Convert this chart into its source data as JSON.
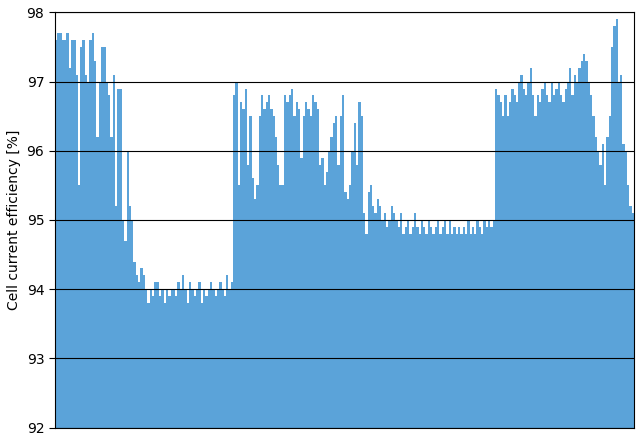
{
  "ylabel": "Cell current efficiency [%]",
  "ylim": [
    92,
    98
  ],
  "yticks": [
    92,
    93,
    94,
    95,
    96,
    97,
    98
  ],
  "bar_color": "#5ba3d9",
  "background_color": "#ffffff",
  "grid_color": "#000000",
  "values": [
    97.6,
    97.7,
    97.7,
    97.6,
    97.6,
    97.7,
    97.2,
    97.6,
    97.6,
    97.1,
    95.5,
    97.5,
    97.6,
    97.1,
    97.0,
    97.6,
    97.7,
    97.3,
    96.2,
    97.0,
    97.5,
    97.5,
    97.0,
    96.8,
    96.2,
    97.1,
    95.2,
    96.9,
    96.9,
    95.0,
    94.7,
    96.0,
    95.2,
    95.0,
    94.4,
    94.2,
    94.1,
    94.3,
    94.2,
    94.0,
    93.8,
    94.0,
    93.9,
    94.1,
    94.1,
    93.9,
    94.0,
    93.8,
    94.0,
    93.9,
    94.0,
    94.0,
    93.9,
    94.1,
    94.0,
    94.2,
    94.0,
    93.8,
    94.1,
    94.0,
    93.9,
    94.0,
    94.1,
    93.8,
    94.0,
    93.9,
    94.0,
    94.1,
    94.0,
    93.9,
    94.0,
    94.1,
    94.0,
    93.9,
    94.2,
    94.0,
    94.1,
    96.8,
    97.0,
    95.5,
    96.7,
    96.6,
    96.9,
    95.8,
    96.5,
    95.6,
    95.3,
    95.5,
    96.5,
    96.8,
    96.6,
    96.7,
    96.8,
    96.6,
    96.5,
    96.2,
    95.8,
    95.5,
    95.5,
    96.8,
    96.7,
    96.8,
    96.9,
    96.5,
    96.7,
    96.6,
    95.9,
    96.5,
    96.7,
    96.6,
    96.5,
    96.8,
    96.7,
    96.6,
    95.8,
    95.9,
    95.5,
    95.7,
    96.0,
    96.2,
    96.4,
    96.5,
    95.8,
    96.5,
    96.8,
    95.4,
    95.3,
    95.5,
    96.0,
    96.4,
    95.8,
    96.7,
    96.5,
    95.1,
    94.8,
    95.4,
    95.5,
    95.2,
    95.1,
    95.3,
    95.2,
    95.0,
    95.1,
    94.9,
    95.0,
    95.2,
    95.1,
    95.0,
    94.9,
    95.1,
    94.8,
    94.9,
    95.0,
    94.8,
    94.9,
    95.1,
    94.9,
    94.8,
    95.0,
    94.9,
    94.8,
    95.0,
    94.9,
    94.8,
    94.9,
    95.0,
    94.8,
    94.9,
    95.0,
    94.8,
    95.0,
    94.8,
    94.9,
    94.8,
    94.9,
    94.8,
    94.9,
    94.8,
    95.0,
    94.8,
    94.9,
    94.8,
    95.0,
    94.9,
    94.8,
    95.0,
    94.9,
    95.0,
    94.9,
    95.0,
    96.9,
    96.8,
    96.7,
    96.5,
    96.8,
    96.5,
    96.7,
    96.9,
    96.8,
    96.7,
    97.0,
    97.1,
    96.9,
    96.8,
    97.0,
    97.2,
    96.8,
    96.5,
    96.8,
    96.7,
    96.9,
    97.0,
    96.8,
    96.7,
    97.0,
    96.8,
    96.9,
    97.0,
    96.8,
    96.7,
    96.9,
    97.0,
    97.2,
    96.8,
    97.1,
    97.0,
    97.2,
    97.3,
    97.4,
    97.3,
    97.0,
    96.8,
    96.5,
    96.2,
    96.0,
    95.8,
    96.1,
    95.5,
    96.2,
    96.5,
    97.5,
    97.8,
    97.9,
    97.0,
    97.1,
    96.1,
    96.0,
    95.5,
    95.2,
    95.1
  ]
}
